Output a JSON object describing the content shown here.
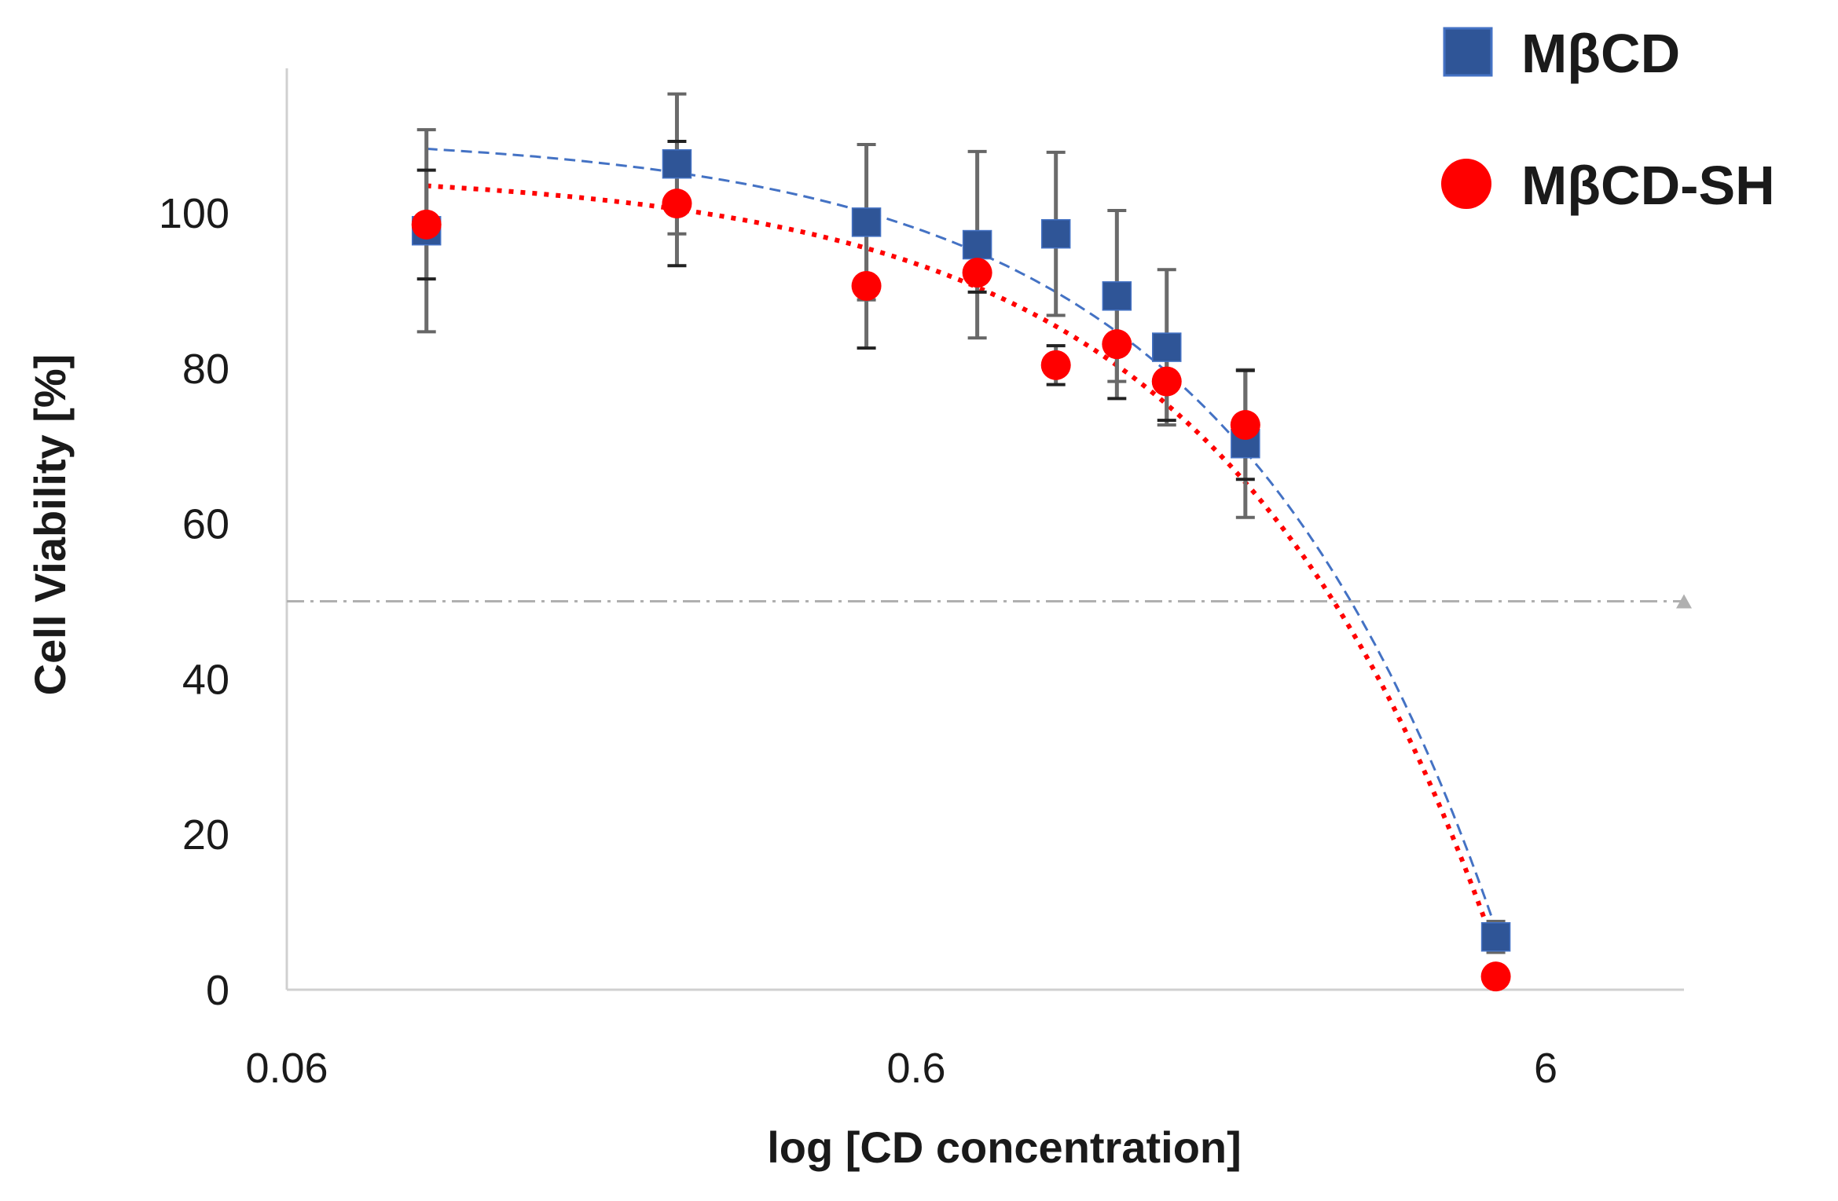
{
  "chart_data": {
    "type": "scatter",
    "title": "",
    "xlabel": "log [CD concentration]",
    "ylabel": "Cell Viability [%]",
    "x_scale": "log",
    "xlim": [
      0.06,
      9
    ],
    "ylim": [
      0,
      115
    ],
    "x_ticks": [
      "0.06",
      "0.6",
      "6"
    ],
    "x_tick_values": [
      0.06,
      0.6,
      6
    ],
    "y_ticks": [
      "0",
      "20",
      "40",
      "60",
      "80",
      "100"
    ],
    "y_tick_values": [
      0,
      20,
      40,
      60,
      80,
      100
    ],
    "grid": false,
    "legend_position": "top-right",
    "reference_line": {
      "y": 50,
      "style": "dash-dot",
      "color": "#b0b0b0"
    },
    "x": [
      0.1,
      0.25,
      0.5,
      0.75,
      1.0,
      1.25,
      1.5,
      2.0,
      5.0
    ],
    "series": [
      {
        "name": "MβCD",
        "marker": "square",
        "color": "#2f5597",
        "values": [
          97.7,
          106.3,
          98.8,
          95.9,
          97.3,
          89.3,
          82.7,
          70.3,
          6.8
        ],
        "errors": [
          13,
          9,
          10,
          12,
          10.5,
          11,
          10,
          9.5,
          2
        ],
        "trendline": {
          "type": "linear",
          "intercept": 110.3,
          "slope": -20.5,
          "color": "#4472c4",
          "style": "dashed"
        }
      },
      {
        "name": "MβCD-SH",
        "marker": "circle",
        "color": "#ff0000",
        "values": [
          98.5,
          101.2,
          90.6,
          92.3,
          80.4,
          83.1,
          78.3,
          72.7,
          1.7
        ],
        "errors": [
          7,
          8,
          8,
          2.5,
          2.5,
          7,
          5,
          7,
          1
        ],
        "trendline": {
          "type": "linear",
          "intercept": 105.5,
          "slope": -20.1,
          "color": "#ff0000",
          "style": "dotted"
        }
      }
    ]
  }
}
